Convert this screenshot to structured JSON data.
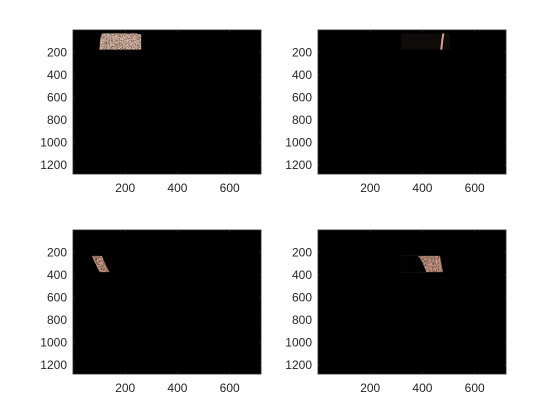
{
  "figure": {
    "background": "#ffffff",
    "axes_color": "#262626",
    "image_background": "#000000",
    "skin_color": "#d9a48e",
    "skin_highlight": "#efc8b4",
    "shadow_tone": "#3a2c28"
  },
  "chart_data": [
    {
      "type": "image",
      "position": "top-left",
      "content": "segmented skin region (bright hand patch in upper-left area)",
      "xlim": [
        0,
        720
      ],
      "ylim": [
        1280,
        0
      ],
      "xticks": [
        200,
        400,
        600
      ],
      "yticks": [
        200,
        400,
        600,
        800,
        1000,
        1200
      ],
      "xtick_labels": [
        "200",
        "400",
        "600"
      ],
      "ytick_labels": [
        "200",
        "400",
        "600",
        "800",
        "1000",
        "1200"
      ],
      "grid": false
    },
    {
      "type": "image",
      "position": "top-right",
      "content": "dark image with thin skin-toned edge contours",
      "xlim": [
        0,
        720
      ],
      "ylim": [
        1280,
        0
      ],
      "xticks": [
        200,
        400,
        600
      ],
      "yticks": [
        200,
        400,
        600,
        800,
        1000,
        1200
      ],
      "xtick_labels": [
        "200",
        "400",
        "600"
      ],
      "ytick_labels": [
        "200",
        "400",
        "600",
        "800",
        "1000",
        "1200"
      ],
      "grid": false
    },
    {
      "type": "image",
      "position": "bottom-left",
      "content": "curved skin-toned band (hand contour)",
      "xlim": [
        0,
        720
      ],
      "ylim": [
        1280,
        0
      ],
      "xticks": [
        200,
        400,
        600
      ],
      "yticks": [
        200,
        400,
        600,
        800,
        1000,
        1200
      ],
      "xtick_labels": [
        "200",
        "400",
        "600"
      ],
      "ytick_labels": [
        "200",
        "400",
        "600",
        "800",
        "1000",
        "1200"
      ],
      "grid": false
    },
    {
      "type": "image",
      "position": "bottom-right",
      "content": "skin-toned speckled band forming hand outline",
      "xlim": [
        0,
        720
      ],
      "ylim": [
        1280,
        0
      ],
      "xticks": [
        200,
        400,
        600
      ],
      "yticks": [
        200,
        400,
        600,
        800,
        1000,
        1200
      ],
      "xtick_labels": [
        "200",
        "400",
        "600"
      ],
      "ytick_labels": [
        "200",
        "400",
        "600",
        "800",
        "1000",
        "1200"
      ],
      "grid": false
    }
  ]
}
